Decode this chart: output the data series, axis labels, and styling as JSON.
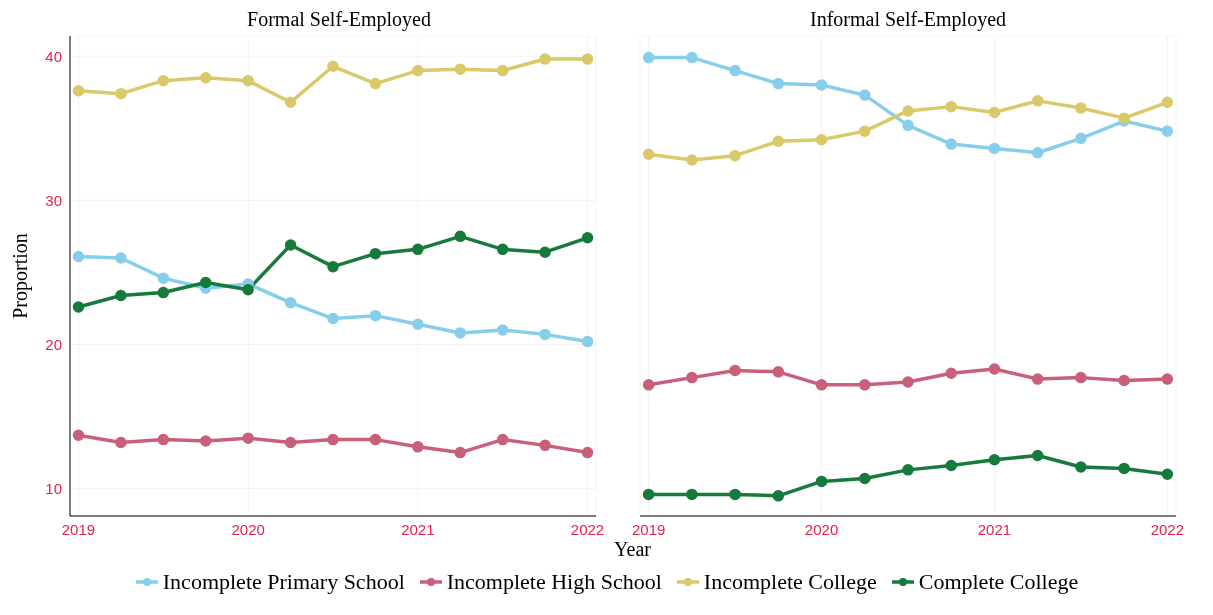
{
  "chart_data": [
    {
      "type": "line",
      "title": "Formal Self-Employed",
      "xlabel": "Year",
      "ylabel": "Proportion",
      "x": [
        2019,
        2019.25,
        2019.5,
        2019.75,
        2020,
        2020.25,
        2020.5,
        2020.75,
        2021,
        2021.25,
        2021.5,
        2021.75,
        2022
      ],
      "xlim": [
        2018.95,
        2022.05
      ],
      "xticks": [
        2019,
        2020,
        2021,
        2022
      ],
      "ylim": [
        8.1,
        41.4
      ],
      "yticks": [
        10,
        20,
        30,
        40
      ],
      "grid": true,
      "legend": "bottom",
      "marker": "circle",
      "line_style": "solid",
      "series": [
        {
          "name": "Incomplete Primary School",
          "color": "#87ceeb",
          "values": [
            26.1,
            26.0,
            24.6,
            23.9,
            24.2,
            22.9,
            21.8,
            22.0,
            21.4,
            20.8,
            21.0,
            20.7,
            20.2
          ]
        },
        {
          "name": "Incomplete High School",
          "color": "#c8607a",
          "values": [
            13.7,
            13.2,
            13.4,
            13.3,
            13.5,
            13.2,
            13.4,
            13.4,
            12.9,
            12.5,
            13.4,
            13.0,
            12.5
          ]
        },
        {
          "name": "Incomplete College",
          "color": "#d9c96b",
          "values": [
            37.6,
            37.4,
            38.3,
            38.5,
            38.3,
            36.8,
            39.3,
            38.1,
            39.0,
            39.1,
            39.0,
            39.8,
            39.8
          ]
        },
        {
          "name": "Complete College",
          "color": "#167a3c",
          "values": [
            22.6,
            23.4,
            23.6,
            24.3,
            23.8,
            26.9,
            25.4,
            26.3,
            26.6,
            27.5,
            26.6,
            26.4,
            27.4
          ]
        }
      ]
    },
    {
      "type": "line",
      "title": "Informal Self-Employed",
      "x": [
        2019,
        2019.25,
        2019.5,
        2019.75,
        2020,
        2020.25,
        2020.5,
        2020.75,
        2021,
        2021.25,
        2021.5,
        2021.75,
        2022
      ],
      "xlim": [
        2018.95,
        2022.05
      ],
      "xticks": [
        2019,
        2020,
        2021,
        2022
      ],
      "ylim": [
        8.1,
        41.4
      ],
      "yticks": [
        10,
        20,
        30,
        40
      ],
      "tick_labels": "x",
      "grid": true,
      "marker": "circle",
      "line_style": "solid",
      "series": [
        {
          "color": "#87ceeb",
          "values": [
            39.9,
            39.9,
            39.0,
            38.1,
            38.0,
            37.3,
            35.2,
            33.9,
            33.6,
            33.3,
            34.3,
            35.5,
            34.8
          ]
        },
        {
          "color": "#c8607a",
          "values": [
            17.2,
            17.7,
            18.2,
            18.1,
            17.2,
            17.2,
            17.4,
            18.0,
            18.3,
            17.6,
            17.7,
            17.5,
            17.6
          ]
        },
        {
          "color": "#d9c96b",
          "values": [
            33.2,
            32.8,
            33.1,
            34.1,
            34.2,
            34.8,
            36.2,
            36.5,
            36.1,
            36.9,
            36.4,
            35.7,
            36.8
          ]
        },
        {
          "color": "#167a3c",
          "values": [
            9.6,
            9.6,
            9.6,
            9.5,
            10.5,
            10.7,
            11.3,
            11.6,
            12.0,
            12.3,
            11.5,
            11.4,
            11.0
          ]
        }
      ]
    }
  ]
}
